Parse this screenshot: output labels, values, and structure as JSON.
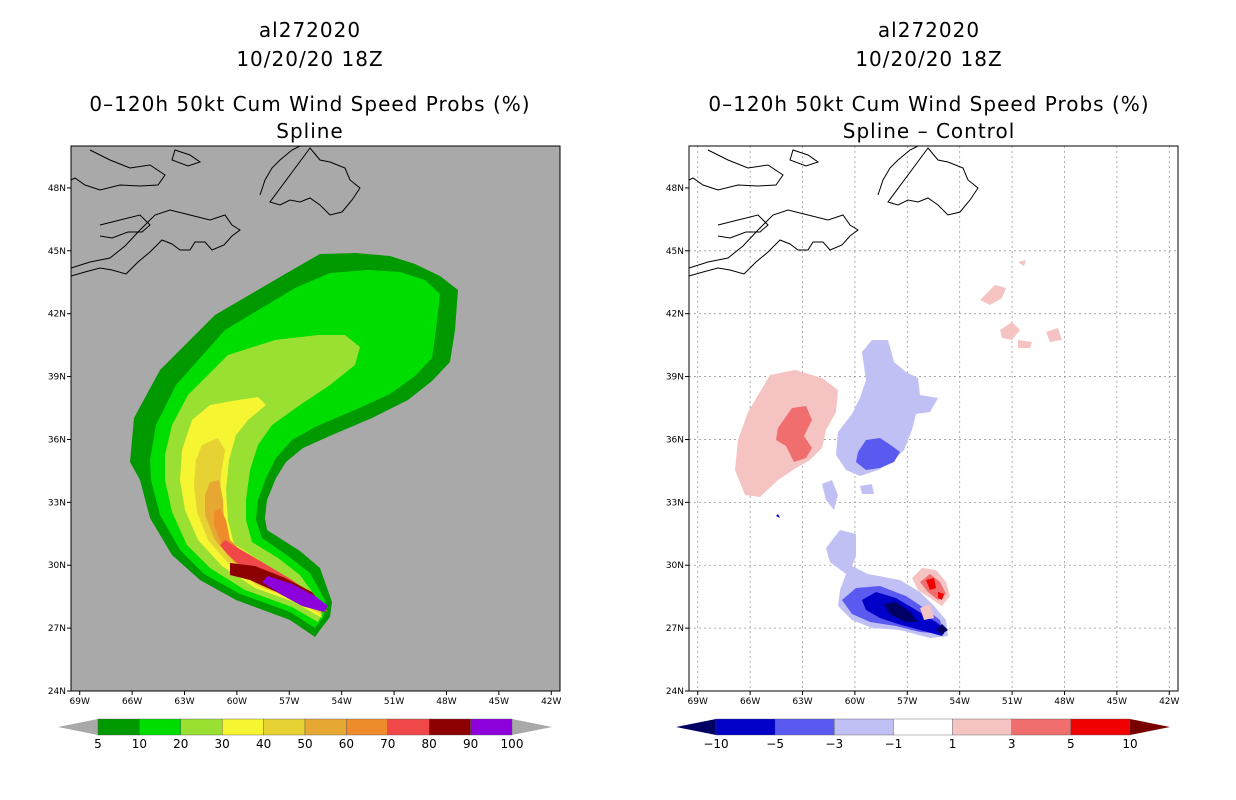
{
  "left_panel": {
    "storm_id": "al272020",
    "date": "10/20/20 18Z",
    "product": "0–120h 50kt Cum Wind Speed Probs (%)",
    "subtitle": "Spline",
    "colorbar": {
      "colors": [
        "#009900",
        "#00dd00",
        "#99e033",
        "#f5f532",
        "#e6d232",
        "#e6a832",
        "#ee8c2c",
        "#f04848",
        "#8c0000",
        "#8c00dc"
      ],
      "labels": [
        "5",
        "10",
        "20",
        "30",
        "40",
        "50",
        "60",
        "70",
        "80",
        "90",
        "100"
      ],
      "under_color": "#a9a9a9",
      "over_color": "#a9a9a9"
    }
  },
  "right_panel": {
    "storm_id": "al272020",
    "date": "10/20/20 18Z",
    "product": "0–120h 50kt Cum Wind Speed Probs (%)",
    "subtitle": "Spline – Control",
    "colorbar": {
      "colors": [
        "#0000c8",
        "#5a5af0",
        "#c0c0f5",
        "#ffffff",
        "#f6c3c3",
        "#f06e6e",
        "#f00000"
      ],
      "labels": [
        "−10",
        "−5",
        "−3",
        "−1",
        "1",
        "3",
        "5",
        "10"
      ],
      "under_color": "#000064",
      "over_color": "#780000"
    }
  },
  "axes": {
    "lat_labels": [
      "48N",
      "45N",
      "42N",
      "39N",
      "36N",
      "33N",
      "30N",
      "27N",
      "24N"
    ],
    "lon_labels": [
      "69W",
      "66W",
      "63W",
      "60W",
      "57W",
      "54W",
      "51W",
      "48W",
      "45W",
      "42W"
    ]
  },
  "map_data": {
    "lon_range": [
      -69.5,
      -41.5
    ],
    "lat_range": [
      24,
      50
    ],
    "ocean_color_left": "#a9a9a9"
  }
}
